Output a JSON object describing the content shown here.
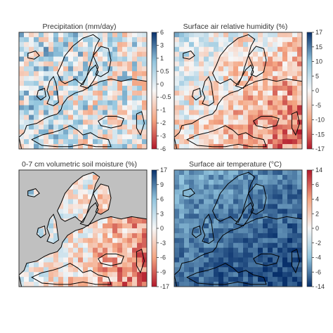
{
  "chart_data": [
    {
      "type": "heatmap",
      "title": "Precipitation (mm/day)",
      "colorbar": {
        "ticks": [
          "6",
          "3",
          "1",
          "0.5",
          "0",
          "-0.5",
          "-1",
          "-2",
          "-3",
          "-6"
        ],
        "scheme": "red-white-blue",
        "top_color": "#08306b",
        "bottom_color": "#b2182b"
      },
      "pattern": {
        "north": 0.12,
        "south": 0.06,
        "west": 0.08,
        "east": -0.05,
        "noise": 0.55,
        "seed": 11
      },
      "land_mask": false
    },
    {
      "type": "heatmap",
      "title": "Surface air relative humidity (%)",
      "colorbar": {
        "ticks": [
          "17",
          "15",
          "10",
          "5",
          "0",
          "-5",
          "-10",
          "-15",
          "-17"
        ],
        "scheme": "red-white-blue",
        "top_color": "#08306b",
        "bottom_color": "#b2182b"
      },
      "pattern": {
        "north": 0.1,
        "south": -0.3,
        "west": 0.15,
        "east": -0.35,
        "noise": 0.4,
        "seed": 23
      },
      "land_mask": false
    },
    {
      "type": "heatmap",
      "title": "0-7 cm volumetric soil moisture (%)",
      "colorbar": {
        "ticks": [
          "17",
          "9",
          "6",
          "3",
          "0",
          "-3",
          "-6",
          "-9",
          "-17"
        ],
        "scheme": "red-white-blue",
        "top_color": "#08306b",
        "bottom_color": "#b2182b"
      },
      "pattern": {
        "north": 0.05,
        "south": -0.25,
        "west": 0.35,
        "east": -0.4,
        "noise": 0.4,
        "seed": 37
      },
      "land_mask": true
    },
    {
      "type": "heatmap",
      "title": "Surface air temperature (°C)",
      "colorbar": {
        "ticks": [
          "14",
          "6",
          "4",
          "2",
          "0",
          "-2",
          "-4",
          "-6",
          "-14"
        ],
        "scheme": "blue-white-red",
        "top_color": "#b2182b",
        "bottom_color": "#08306b"
      },
      "pattern": {
        "north": -0.3,
        "south": -0.5,
        "west": -0.3,
        "east": -0.45,
        "noise": 0.15,
        "seed": 51
      },
      "land_mask": false
    }
  ],
  "colors": {
    "ocean_mask": "#c0c0c0",
    "coast": "#000000",
    "frame": "#333333"
  }
}
